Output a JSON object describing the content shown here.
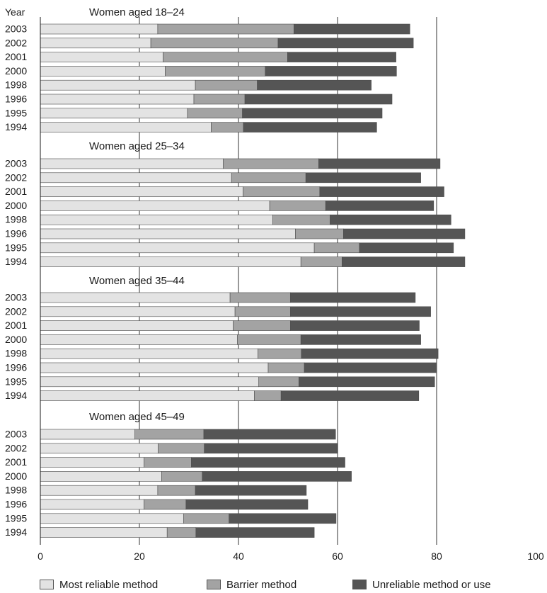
{
  "chart_data": {
    "type": "bar",
    "orientation": "horizontal",
    "stacked": true,
    "y_header": "Year",
    "xlim": [
      0,
      100
    ],
    "x_ticks": [
      "0",
      "20",
      "40",
      "60",
      "80",
      "100"
    ],
    "grid": "vertical lines at 20, 40, 60, 80",
    "legend_position": "bottom",
    "series": [
      {
        "name": "Most reliable method",
        "color": "#e3e3e3"
      },
      {
        "name": "Barrier method",
        "color": "#a3a3a3"
      },
      {
        "name": "Unreliable method or use",
        "color": "#555555"
      }
    ],
    "groups": [
      {
        "title": "Women aged 18–24",
        "rows": [
          {
            "year": "2003",
            "values": [
              23.7,
              27.5,
              23.4
            ]
          },
          {
            "year": "2002",
            "values": [
              22.3,
              25.7,
              27.3
            ]
          },
          {
            "year": "2001",
            "values": [
              24.8,
              25.1,
              21.9
            ]
          },
          {
            "year": "2000",
            "values": [
              25.2,
              20.2,
              26.5
            ]
          },
          {
            "year": "1998",
            "values": [
              31.3,
              12.5,
              23.0
            ]
          },
          {
            "year": "1996",
            "values": [
              31.0,
              10.3,
              29.7
            ]
          },
          {
            "year": "1995",
            "values": [
              29.7,
              11.1,
              28.2
            ]
          },
          {
            "year": "1994",
            "values": [
              34.5,
              6.5,
              26.9
            ]
          }
        ]
      },
      {
        "title": "Women aged 25–34",
        "rows": [
          {
            "year": "2003",
            "values": [
              36.9,
              19.3,
              24.5
            ]
          },
          {
            "year": "2002",
            "values": [
              38.6,
              15.0,
              23.2
            ]
          },
          {
            "year": "2001",
            "values": [
              40.9,
              15.5,
              25.1
            ]
          },
          {
            "year": "2000",
            "values": [
              46.3,
              11.3,
              21.8
            ]
          },
          {
            "year": "1998",
            "values": [
              46.9,
              11.6,
              24.4
            ]
          },
          {
            "year": "1996",
            "values": [
              51.5,
              9.7,
              24.5
            ]
          },
          {
            "year": "1995",
            "values": [
              55.3,
              9.1,
              19.0
            ]
          },
          {
            "year": "1994",
            "values": [
              52.6,
              8.3,
              24.8
            ]
          }
        ]
      },
      {
        "title": "Women aged 35–44",
        "rows": [
          {
            "year": "2003",
            "values": [
              38.3,
              12.2,
              25.2
            ]
          },
          {
            "year": "2002",
            "values": [
              39.3,
              11.2,
              28.3
            ]
          },
          {
            "year": "2001",
            "values": [
              38.9,
              11.6,
              26.0
            ]
          },
          {
            "year": "2000",
            "values": [
              39.8,
              12.8,
              24.2
            ]
          },
          {
            "year": "1998",
            "values": [
              43.9,
              8.8,
              27.6
            ]
          },
          {
            "year": "1996",
            "values": [
              46.0,
              7.3,
              26.7
            ]
          },
          {
            "year": "1995",
            "values": [
              44.1,
              8.1,
              27.4
            ]
          },
          {
            "year": "1994",
            "values": [
              43.2,
              5.4,
              27.8
            ]
          }
        ]
      },
      {
        "title": "Women aged 45–49",
        "rows": [
          {
            "year": "2003",
            "values": [
              19.1,
              13.9,
              26.6
            ]
          },
          {
            "year": "2002",
            "values": [
              23.8,
              9.3,
              26.8
            ]
          },
          {
            "year": "2001",
            "values": [
              20.9,
              9.6,
              31.0
            ]
          },
          {
            "year": "2000",
            "values": [
              24.5,
              8.2,
              30.1
            ]
          },
          {
            "year": "1998",
            "values": [
              23.7,
              7.6,
              22.4
            ]
          },
          {
            "year": "1996",
            "values": [
              20.9,
              8.5,
              24.6
            ]
          },
          {
            "year": "1995",
            "values": [
              28.9,
              9.2,
              21.6
            ]
          },
          {
            "year": "1994",
            "values": [
              25.6,
              5.8,
              23.9
            ]
          }
        ]
      }
    ]
  }
}
